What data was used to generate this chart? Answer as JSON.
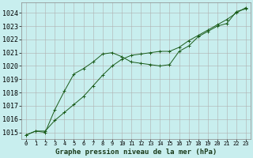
{
  "xlabel": "Graphe pression niveau de la mer (hPa)",
  "background_color": "#c8eeee",
  "grid_color": "#b0b0b0",
  "line_color": "#1a5c1a",
  "ylim": [
    1014.5,
    1024.8
  ],
  "xlim": [
    -0.5,
    23.5
  ],
  "yticks": [
    1015,
    1016,
    1017,
    1018,
    1019,
    1020,
    1021,
    1022,
    1023,
    1024
  ],
  "xticks": [
    0,
    1,
    2,
    3,
    4,
    5,
    6,
    7,
    8,
    9,
    10,
    11,
    12,
    13,
    14,
    15,
    16,
    17,
    18,
    19,
    20,
    21,
    22,
    23
  ],
  "line1_x": [
    0,
    1,
    2,
    3,
    4,
    5,
    6,
    7,
    8,
    9,
    10,
    11,
    12,
    13,
    14,
    15,
    16,
    17,
    18,
    19,
    20,
    21,
    22,
    23
  ],
  "line1_y": [
    1014.8,
    1015.1,
    1015.0,
    1016.7,
    1018.1,
    1019.4,
    1019.8,
    1020.3,
    1020.9,
    1021.0,
    1020.7,
    1020.3,
    1020.2,
    1020.1,
    1020.0,
    1020.1,
    1021.1,
    1021.5,
    1022.2,
    1022.6,
    1023.0,
    1023.2,
    1024.1,
    1024.3
  ],
  "line2_x": [
    0,
    1,
    2,
    3,
    4,
    5,
    6,
    7,
    8,
    9,
    10,
    11,
    12,
    13,
    14,
    15,
    16,
    17,
    18,
    19,
    20,
    21,
    22,
    23
  ],
  "line2_y": [
    1014.8,
    1015.1,
    1015.1,
    1015.9,
    1016.5,
    1017.1,
    1017.7,
    1018.5,
    1019.3,
    1020.0,
    1020.5,
    1020.8,
    1020.9,
    1021.0,
    1021.1,
    1021.1,
    1021.4,
    1021.9,
    1022.3,
    1022.7,
    1023.1,
    1023.5,
    1024.0,
    1024.4
  ],
  "ytick_fontsize": 6,
  "xtick_fontsize": 5,
  "xlabel_fontsize": 6.5
}
